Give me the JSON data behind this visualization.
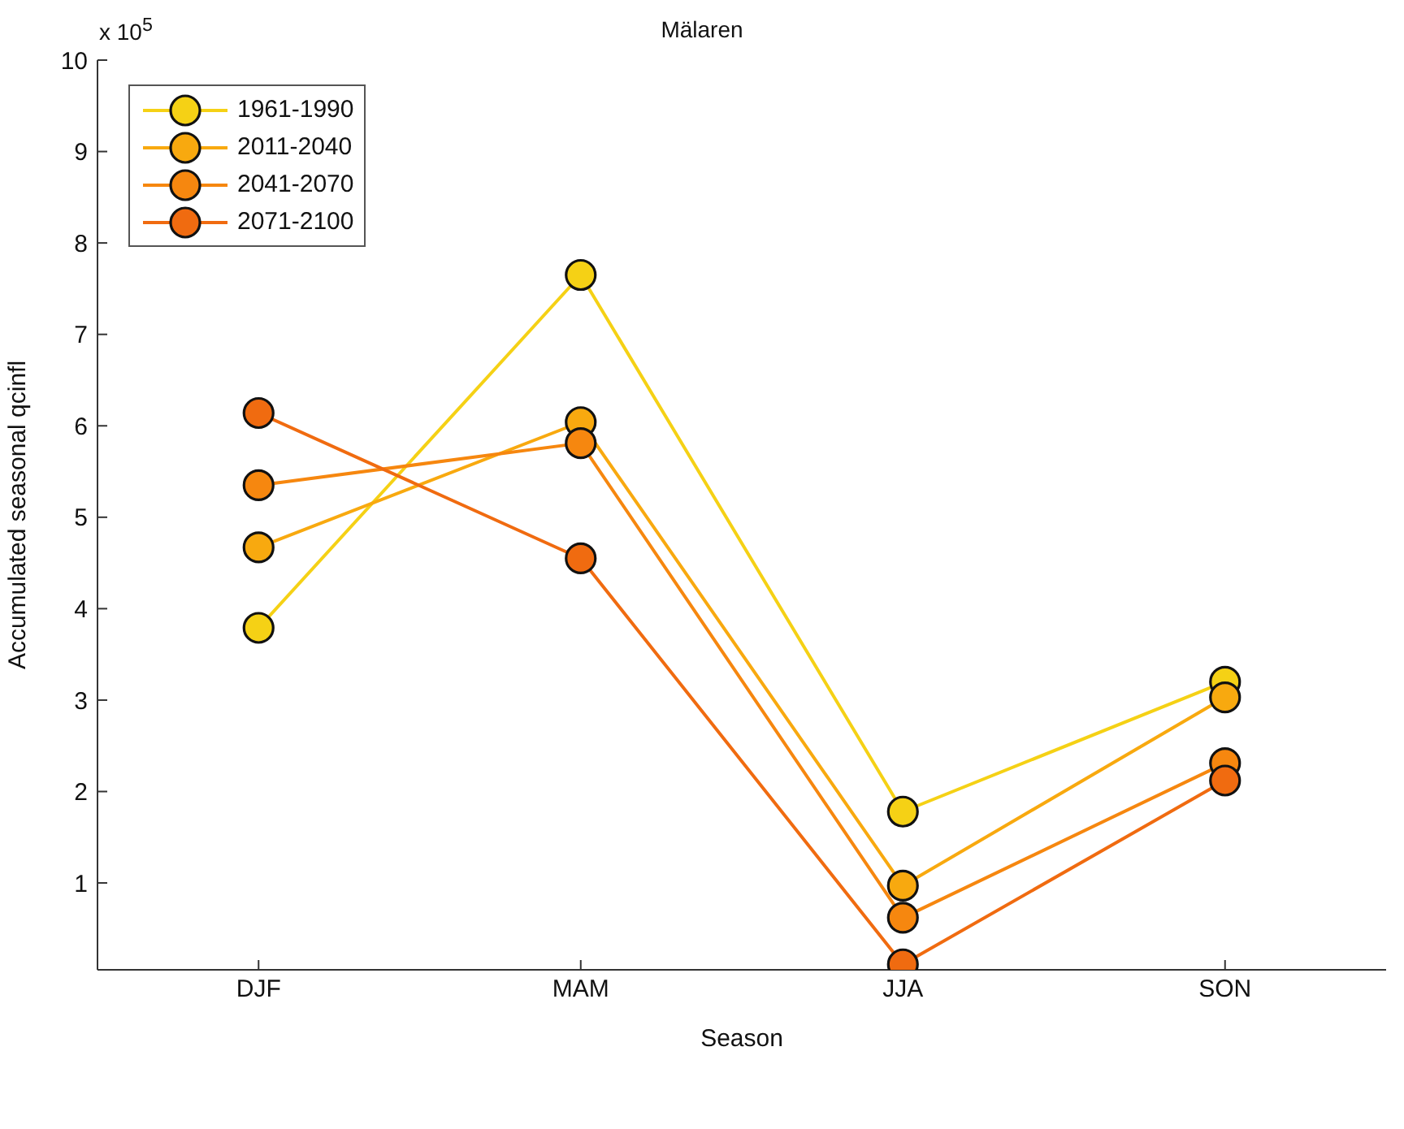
{
  "chart_data": {
    "type": "line",
    "title": "Mälaren",
    "xlabel": "Season",
    "ylabel": "Accumulated seasonal qcinfl",
    "annotations": [
      "x 10$^{5}$"
    ],
    "categories": [
      "DJF",
      "MAM",
      "JJA",
      "SON"
    ],
    "series": [
      {
        "name": "1961-1990",
        "color": "#f5d115",
        "values": [
          3.79,
          7.65,
          1.78,
          3.2
        ]
      },
      {
        "name": "2011-2040",
        "color": "#f8a90f",
        "values": [
          4.67,
          6.04,
          0.97,
          3.03
        ]
      },
      {
        "name": "2041-2070",
        "color": "#f6870f",
        "values": [
          5.35,
          5.81,
          0.62,
          2.31
        ]
      },
      {
        "name": "2071-2100",
        "color": "#f06b10",
        "values": [
          6.14,
          4.55,
          0.11,
          2.12
        ]
      }
    ],
    "ylim": [
      0.05,
      10
    ],
    "yticks": [
      1,
      2,
      3,
      4,
      5,
      6,
      7,
      8,
      9,
      10
    ],
    "legend": "top left",
    "marker": "circle",
    "line_style": "solid"
  }
}
